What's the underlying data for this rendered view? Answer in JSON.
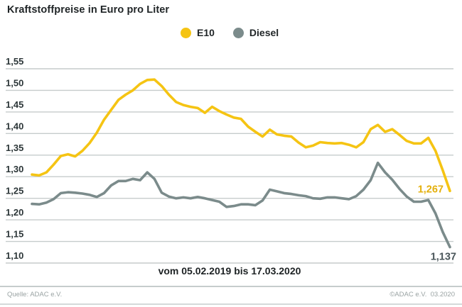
{
  "title": "Kraftstoffpreise in Euro pro Liter",
  "legend": [
    {
      "label": "E10",
      "color": "#F5C413"
    },
    {
      "label": "Diesel",
      "color": "#7B8B8B"
    }
  ],
  "chart_data": {
    "type": "line",
    "title": "Kraftstoffpreise in Euro pro Liter",
    "xlabel": "vom 05.02.2019 bis 17.03.2020",
    "ylabel": "Euro pro Liter",
    "ylim": [
      1.1,
      1.55
    ],
    "grid": true,
    "legend_position": "top-center",
    "x_range": {
      "start": "05.02.2019",
      "end": "17.03.2020"
    },
    "y_ticks": {
      "values": [
        1.55,
        1.5,
        1.45,
        1.4,
        1.35,
        1.3,
        1.25,
        1.2,
        1.15,
        1.1
      ],
      "labels": [
        "1,55",
        "1,50",
        "1,45",
        "1,40",
        "1,35",
        "1,30",
        "1,25",
        "1,20",
        "1,15",
        "1,10"
      ]
    },
    "series": [
      {
        "name": "E10",
        "color": "#F5C413",
        "end_label": "1,267",
        "end_label_color": "#E4B00C",
        "end_value": 1.267,
        "values": [
          1.305,
          1.303,
          1.31,
          1.328,
          1.348,
          1.352,
          1.347,
          1.36,
          1.378,
          1.402,
          1.432,
          1.455,
          1.478,
          1.49,
          1.5,
          1.515,
          1.524,
          1.525,
          1.51,
          1.49,
          1.473,
          1.466,
          1.462,
          1.459,
          1.448,
          1.462,
          1.452,
          1.444,
          1.437,
          1.434,
          1.416,
          1.404,
          1.393,
          1.409,
          1.398,
          1.395,
          1.393,
          1.379,
          1.368,
          1.372,
          1.38,
          1.378,
          1.377,
          1.378,
          1.374,
          1.368,
          1.38,
          1.41,
          1.42,
          1.404,
          1.41,
          1.397,
          1.383,
          1.377,
          1.377,
          1.39,
          1.36,
          1.315,
          1.267
        ]
      },
      {
        "name": "Diesel",
        "color": "#7B8B8B",
        "end_label": "1,137",
        "end_label_color": "#4A565A",
        "end_value": 1.137,
        "values": [
          1.237,
          1.236,
          1.24,
          1.248,
          1.262,
          1.264,
          1.263,
          1.261,
          1.258,
          1.253,
          1.262,
          1.28,
          1.29,
          1.29,
          1.295,
          1.292,
          1.31,
          1.295,
          1.263,
          1.254,
          1.25,
          1.252,
          1.25,
          1.253,
          1.25,
          1.246,
          1.242,
          1.23,
          1.232,
          1.236,
          1.236,
          1.234,
          1.245,
          1.27,
          1.266,
          1.262,
          1.26,
          1.257,
          1.255,
          1.25,
          1.249,
          1.252,
          1.252,
          1.25,
          1.248,
          1.255,
          1.27,
          1.292,
          1.332,
          1.31,
          1.293,
          1.272,
          1.254,
          1.242,
          1.242,
          1.246,
          1.215,
          1.172,
          1.137
        ]
      }
    ]
  },
  "footer": {
    "source": "Quelle: ADAC e.V.",
    "copyright": "©ADAC e.V.  03.2020"
  }
}
